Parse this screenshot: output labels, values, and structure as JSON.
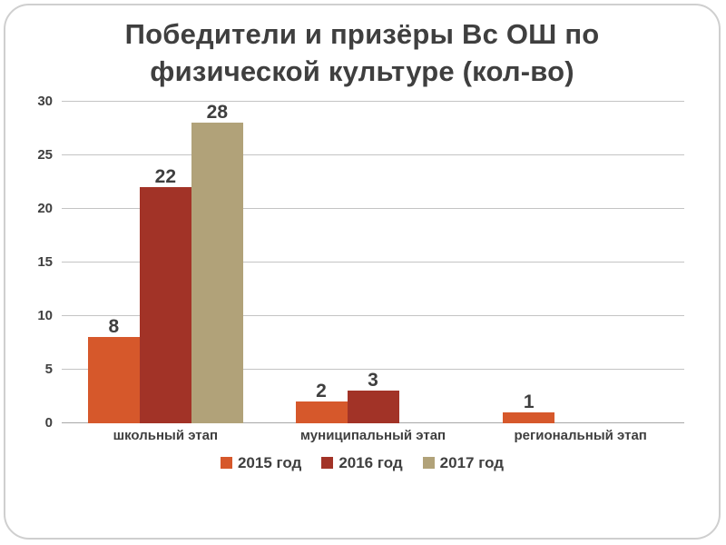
{
  "slide": {
    "title_lines": [
      "Победители и призёры Вс ОШ по",
      "физической культуре (кол-во)"
    ]
  },
  "chart_data": {
    "type": "bar",
    "title": "Победители и призёры Вс ОШ по физической культуре (кол-во)",
    "categories": [
      "школьный этап",
      "муниципальный этап",
      "региональный этап"
    ],
    "series": [
      {
        "name": "2015 год",
        "color": "#d6582b",
        "values": [
          8,
          2,
          1
        ]
      },
      {
        "name": "2016 год",
        "color": "#a23327",
        "values": [
          22,
          3,
          0
        ]
      },
      {
        "name": "2017 год",
        "color": "#b1a279",
        "values": [
          28,
          0,
          0
        ]
      }
    ],
    "ylim": [
      0,
      30
    ],
    "yticks": [
      0,
      5,
      10,
      15,
      20,
      25,
      30
    ],
    "grid": true,
    "data_labels": true,
    "legend_position": "bottom"
  },
  "colors": {
    "title_text": "#3f3f3f",
    "axis_text": "#3f3f3f",
    "gridline": "#c4c4c4",
    "slide_border": "#cfcfcf",
    "background": "#ffffff"
  }
}
